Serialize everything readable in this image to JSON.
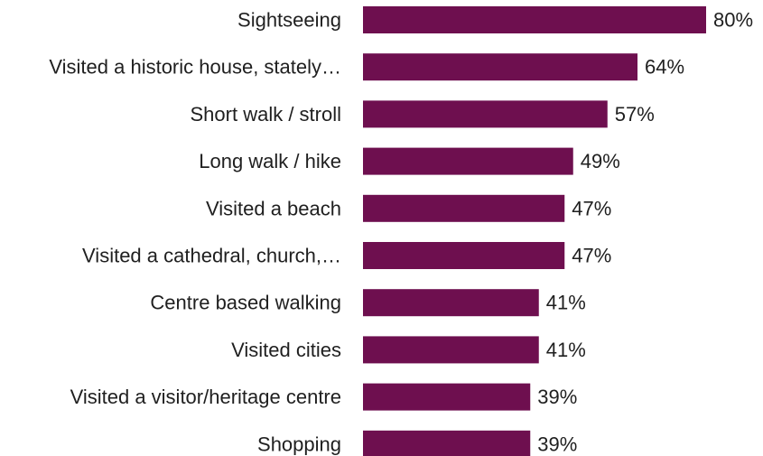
{
  "chart_data": {
    "type": "bar",
    "orientation": "horizontal",
    "title": "",
    "xlabel": "",
    "ylabel": "",
    "categories": [
      "Sightseeing",
      "Visited a historic house, stately…",
      "Short walk / stroll",
      "Long walk / hike",
      "Visited a beach",
      "Visited a cathedral, church,…",
      "Centre based walking",
      "Visited cities",
      "Visited a visitor/heritage centre",
      "Shopping"
    ],
    "values": [
      80,
      64,
      57,
      49,
      47,
      47,
      41,
      41,
      39,
      39
    ],
    "value_labels": [
      "80%",
      "64%",
      "57%",
      "49%",
      "47%",
      "47%",
      "41%",
      "41%",
      "39%",
      "39%"
    ],
    "xlim": [
      0,
      80
    ],
    "grid": false,
    "legend": "none",
    "bar_color": "#6e0f4f",
    "text_color": "#1f1f1f"
  }
}
